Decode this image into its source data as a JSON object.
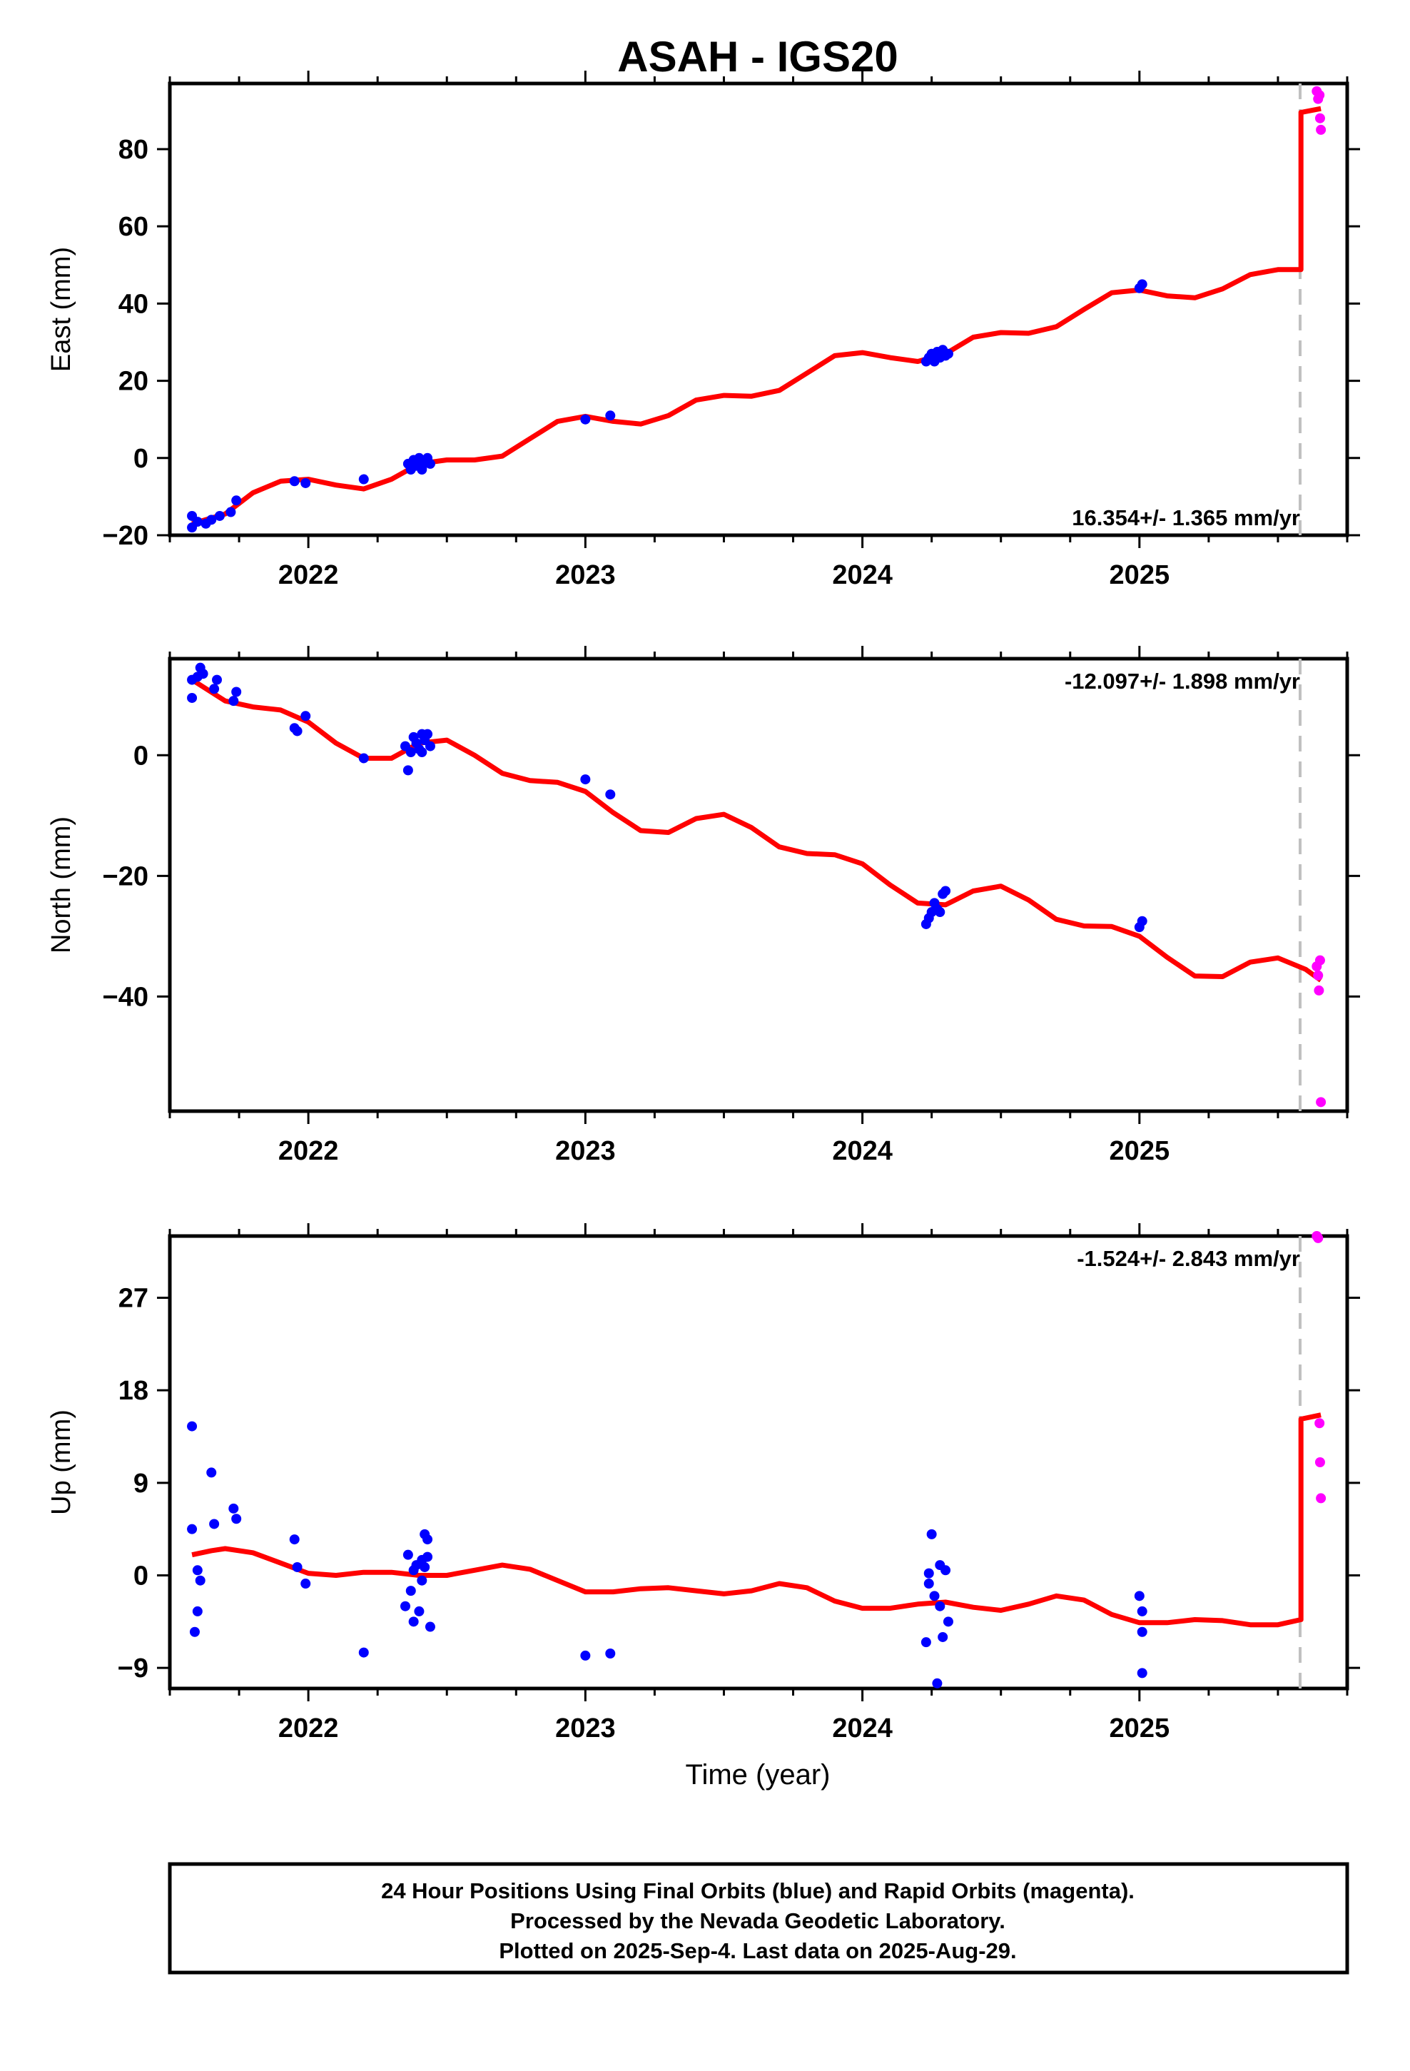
{
  "title": "ASAH - IGS20",
  "xlabel": "Time (year)",
  "footer": {
    "line1": "24 Hour Positions Using Final Orbits (blue) and Rapid Orbits (magenta).",
    "line2": "Processed by the Nevada Geodetic Laboratory.",
    "line3": "Plotted on 2025-Sep-4. Last data on 2025-Aug-29."
  },
  "colors": {
    "final": "#0000ff",
    "rapid": "#ff00ff",
    "model": "#ff0000",
    "dashed": "#c0c0c0"
  },
  "chart_data": [
    {
      "type": "scatter",
      "panel": "east",
      "ylabel": "East (mm)",
      "rate_label": "16.354+/- 1.365 mm/yr",
      "xlim": [
        2021.5,
        2025.75
      ],
      "ylim": [
        -20,
        97
      ],
      "yticks": [
        -20,
        0,
        20,
        40,
        60,
        80
      ],
      "xticks": [
        2022,
        2023,
        2024,
        2025
      ],
      "dashed_x": 2025.58,
      "final": [
        [
          2021.58,
          -18
        ],
        [
          2021.58,
          -15
        ],
        [
          2021.6,
          -16.5
        ],
        [
          2021.63,
          -17
        ],
        [
          2021.65,
          -16
        ],
        [
          2021.68,
          -15
        ],
        [
          2021.72,
          -14
        ],
        [
          2021.74,
          -11
        ],
        [
          2021.95,
          -6
        ],
        [
          2021.99,
          -6.5
        ],
        [
          2022.2,
          -5.5
        ],
        [
          2022.36,
          -1.5
        ],
        [
          2022.37,
          -3
        ],
        [
          2022.38,
          -0.5
        ],
        [
          2022.39,
          -2
        ],
        [
          2022.4,
          0
        ],
        [
          2022.41,
          -2.5
        ],
        [
          2022.42,
          -1
        ],
        [
          2022.43,
          0
        ],
        [
          2022.41,
          -3
        ],
        [
          2022.44,
          -1.5
        ],
        [
          2023.0,
          10
        ],
        [
          2023.09,
          11
        ],
        [
          2024.23,
          25
        ],
        [
          2024.24,
          26
        ],
        [
          2024.25,
          27
        ],
        [
          2024.26,
          25
        ],
        [
          2024.27,
          27.5
        ],
        [
          2024.28,
          26
        ],
        [
          2024.29,
          28
        ],
        [
          2024.3,
          26.5
        ],
        [
          2024.31,
          27
        ],
        [
          2025.0,
          44
        ],
        [
          2025.01,
          45
        ]
      ],
      "rapid": [
        [
          2025.64,
          95
        ],
        [
          2025.645,
          93
        ],
        [
          2025.65,
          94
        ],
        [
          2025.652,
          88
        ],
        [
          2025.655,
          85
        ]
      ],
      "model": [
        [
          2021.58,
          -17
        ],
        [
          2021.7,
          -14.5
        ],
        [
          2021.8,
          -9
        ],
        [
          2021.9,
          -6
        ],
        [
          2022.0,
          -5.5
        ],
        [
          2022.1,
          -7
        ],
        [
          2022.2,
          -8
        ],
        [
          2022.3,
          -5.5
        ],
        [
          2022.4,
          -1.5
        ],
        [
          2022.5,
          -0.5
        ],
        [
          2022.6,
          -0.5
        ],
        [
          2022.7,
          0.5
        ],
        [
          2022.8,
          5
        ],
        [
          2022.9,
          9.5
        ],
        [
          2023.0,
          10.8
        ],
        [
          2023.1,
          9.5
        ],
        [
          2023.2,
          8.8
        ],
        [
          2023.3,
          11
        ],
        [
          2023.4,
          15
        ],
        [
          2023.5,
          16.2
        ],
        [
          2023.6,
          16
        ],
        [
          2023.7,
          17.5
        ],
        [
          2023.8,
          22
        ],
        [
          2023.9,
          26.5
        ],
        [
          2024.0,
          27.3
        ],
        [
          2024.1,
          26
        ],
        [
          2024.2,
          25
        ],
        [
          2024.3,
          27
        ],
        [
          2024.4,
          31.3
        ],
        [
          2024.5,
          32.5
        ],
        [
          2024.6,
          32.3
        ],
        [
          2024.7,
          34
        ],
        [
          2024.8,
          38.5
        ],
        [
          2024.9,
          42.8
        ],
        [
          2025.0,
          43.5
        ],
        [
          2025.1,
          42
        ],
        [
          2025.2,
          41.5
        ],
        [
          2025.3,
          43.8
        ],
        [
          2025.4,
          47.5
        ],
        [
          2025.5,
          48.8
        ],
        [
          2025.583,
          48.8
        ],
        [
          2025.583,
          89.5
        ],
        [
          2025.655,
          90.5
        ]
      ]
    },
    {
      "type": "scatter",
      "panel": "north",
      "ylabel": "North (mm)",
      "rate_label": "-12.097+/- 1.898 mm/yr",
      "xlim": [
        2021.5,
        2025.75
      ],
      "ylim": [
        -59,
        16
      ],
      "yticks": [
        -40,
        -20,
        0
      ],
      "xticks": [
        2022,
        2023,
        2024,
        2025
      ],
      "dashed_x": 2025.58,
      "final": [
        [
          2021.58,
          9.5
        ],
        [
          2021.58,
          12.5
        ],
        [
          2021.6,
          13
        ],
        [
          2021.61,
          14.5
        ],
        [
          2021.62,
          13.5
        ],
        [
          2021.66,
          11
        ],
        [
          2021.67,
          12.5
        ],
        [
          2021.73,
          9
        ],
        [
          2021.74,
          10.5
        ],
        [
          2021.95,
          4.5
        ],
        [
          2021.96,
          4
        ],
        [
          2021.99,
          6.5
        ],
        [
          2022.2,
          -0.5
        ],
        [
          2022.35,
          1.5
        ],
        [
          2022.36,
          -2.5
        ],
        [
          2022.37,
          0.5
        ],
        [
          2022.38,
          3
        ],
        [
          2022.39,
          2
        ],
        [
          2022.4,
          1
        ],
        [
          2022.41,
          3.5
        ],
        [
          2022.42,
          2.5
        ],
        [
          2022.43,
          3.5
        ],
        [
          2022.41,
          0.5
        ],
        [
          2022.44,
          1.5
        ],
        [
          2023.0,
          -4
        ],
        [
          2023.09,
          -6.5
        ],
        [
          2024.23,
          -28
        ],
        [
          2024.24,
          -27
        ],
        [
          2024.25,
          -26
        ],
        [
          2024.26,
          -24.5
        ],
        [
          2024.27,
          -25.5
        ],
        [
          2024.28,
          -26
        ],
        [
          2024.29,
          -23
        ],
        [
          2024.3,
          -22.5
        ],
        [
          2025.0,
          -28.5
        ],
        [
          2025.01,
          -27.5
        ]
      ],
      "rapid": [
        [
          2025.64,
          -35
        ],
        [
          2025.645,
          -36.5
        ],
        [
          2025.648,
          -39
        ],
        [
          2025.652,
          -34
        ],
        [
          2025.655,
          -57.5
        ]
      ],
      "model": [
        [
          2021.58,
          12.5
        ],
        [
          2021.7,
          9
        ],
        [
          2021.8,
          8
        ],
        [
          2021.9,
          7.5
        ],
        [
          2022.0,
          5.5
        ],
        [
          2022.1,
          2
        ],
        [
          2022.2,
          -0.5
        ],
        [
          2022.3,
          -0.5
        ],
        [
          2022.4,
          2
        ],
        [
          2022.5,
          2.5
        ],
        [
          2022.6,
          0
        ],
        [
          2022.7,
          -3
        ],
        [
          2022.8,
          -4.2
        ],
        [
          2022.9,
          -4.5
        ],
        [
          2023.0,
          -6
        ],
        [
          2023.1,
          -9.5
        ],
        [
          2023.2,
          -12.5
        ],
        [
          2023.3,
          -12.8
        ],
        [
          2023.4,
          -10.5
        ],
        [
          2023.5,
          -9.8
        ],
        [
          2023.6,
          -12
        ],
        [
          2023.7,
          -15.2
        ],
        [
          2023.8,
          -16.3
        ],
        [
          2023.9,
          -16.5
        ],
        [
          2024.0,
          -18
        ],
        [
          2024.1,
          -21.5
        ],
        [
          2024.2,
          -24.5
        ],
        [
          2024.3,
          -24.8
        ],
        [
          2024.4,
          -22.5
        ],
        [
          2024.5,
          -21.7
        ],
        [
          2024.6,
          -24
        ],
        [
          2024.7,
          -27.2
        ],
        [
          2024.8,
          -28.3
        ],
        [
          2024.9,
          -28.4
        ],
        [
          2025.0,
          -30
        ],
        [
          2025.1,
          -33.5
        ],
        [
          2025.2,
          -36.6
        ],
        [
          2025.3,
          -36.7
        ],
        [
          2025.4,
          -34.3
        ],
        [
          2025.5,
          -33.6
        ],
        [
          2025.6,
          -35.5
        ],
        [
          2025.655,
          -37.3
        ]
      ]
    },
    {
      "type": "scatter",
      "panel": "up",
      "ylabel": "Up (mm)",
      "rate_label": "-1.524+/- 2.843 mm/yr",
      "xlim": [
        2021.5,
        2025.75
      ],
      "ylim": [
        -11,
        33
      ],
      "yticks": [
        -9,
        0,
        9,
        18,
        27
      ],
      "xticks": [
        2022,
        2023,
        2024,
        2025
      ],
      "dashed_x": 2025.58,
      "final": [
        [
          2021.58,
          14.5
        ],
        [
          2021.58,
          4.5
        ],
        [
          2021.59,
          -5.5
        ],
        [
          2021.6,
          0.5
        ],
        [
          2021.61,
          -0.5
        ],
        [
          2021.6,
          -3.5
        ],
        [
          2021.65,
          10
        ],
        [
          2021.66,
          5
        ],
        [
          2021.73,
          6.5
        ],
        [
          2021.74,
          5.5
        ],
        [
          2021.95,
          3.5
        ],
        [
          2021.96,
          0.8
        ],
        [
          2021.99,
          -0.8
        ],
        [
          2022.2,
          -7.5
        ],
        [
          2022.35,
          -3
        ],
        [
          2022.36,
          2
        ],
        [
          2022.37,
          -1.5
        ],
        [
          2022.38,
          -4.5
        ],
        [
          2022.38,
          0.5
        ],
        [
          2022.39,
          1
        ],
        [
          2022.4,
          -3.5
        ],
        [
          2022.41,
          1.5
        ],
        [
          2022.41,
          -0.5
        ],
        [
          2022.42,
          4
        ],
        [
          2022.43,
          3.5
        ],
        [
          2022.44,
          -5
        ],
        [
          2022.42,
          0.8
        ],
        [
          2022.43,
          1.8
        ],
        [
          2023.0,
          -7.8
        ],
        [
          2023.09,
          -7.6
        ],
        [
          2024.23,
          -6.5
        ],
        [
          2024.24,
          -0.8
        ],
        [
          2024.25,
          4
        ],
        [
          2024.26,
          -2
        ],
        [
          2024.27,
          -10.5
        ],
        [
          2024.28,
          1
        ],
        [
          2024.28,
          -3
        ],
        [
          2024.29,
          -6
        ],
        [
          2024.3,
          0.5
        ],
        [
          2024.31,
          -4.5
        ],
        [
          2024.24,
          0.2
        ],
        [
          2025.0,
          -2
        ],
        [
          2025.01,
          -3.5
        ],
        [
          2025.01,
          -5.5
        ],
        [
          2025.01,
          -9.5
        ]
      ],
      "rapid": [
        [
          2025.64,
          33
        ],
        [
          2025.645,
          32.8
        ],
        [
          2025.65,
          14.8
        ],
        [
          2025.652,
          11
        ],
        [
          2025.655,
          7.5
        ]
      ],
      "model": [
        [
          2021.58,
          2
        ],
        [
          2021.65,
          2.4
        ],
        [
          2021.7,
          2.6
        ],
        [
          2021.8,
          2.2
        ],
        [
          2021.9,
          1.2
        ],
        [
          2022.0,
          0.2
        ],
        [
          2022.1,
          0
        ],
        [
          2022.2,
          0.3
        ],
        [
          2022.3,
          0.3
        ],
        [
          2022.4,
          0
        ],
        [
          2022.5,
          0
        ],
        [
          2022.6,
          0.5
        ],
        [
          2022.7,
          1
        ],
        [
          2022.8,
          0.6
        ],
        [
          2022.9,
          -0.5
        ],
        [
          2023.0,
          -1.6
        ],
        [
          2023.1,
          -1.6
        ],
        [
          2023.2,
          -1.3
        ],
        [
          2023.3,
          -1.2
        ],
        [
          2023.4,
          -1.5
        ],
        [
          2023.5,
          -1.8
        ],
        [
          2023.6,
          -1.5
        ],
        [
          2023.7,
          -0.8
        ],
        [
          2023.8,
          -1.2
        ],
        [
          2023.9,
          -2.5
        ],
        [
          2024.0,
          -3.2
        ],
        [
          2024.1,
          -3.2
        ],
        [
          2024.2,
          -2.8
        ],
        [
          2024.3,
          -2.6
        ],
        [
          2024.4,
          -3.1
        ],
        [
          2024.5,
          -3.4
        ],
        [
          2024.6,
          -2.8
        ],
        [
          2024.7,
          -2
        ],
        [
          2024.8,
          -2.4
        ],
        [
          2024.9,
          -3.8
        ],
        [
          2025.0,
          -4.6
        ],
        [
          2025.1,
          -4.6
        ],
        [
          2025.2,
          -4.3
        ],
        [
          2025.3,
          -4.4
        ],
        [
          2025.4,
          -4.8
        ],
        [
          2025.5,
          -4.8
        ],
        [
          2025.583,
          -4.3
        ],
        [
          2025.583,
          15.2
        ],
        [
          2025.655,
          15.6
        ]
      ]
    }
  ]
}
